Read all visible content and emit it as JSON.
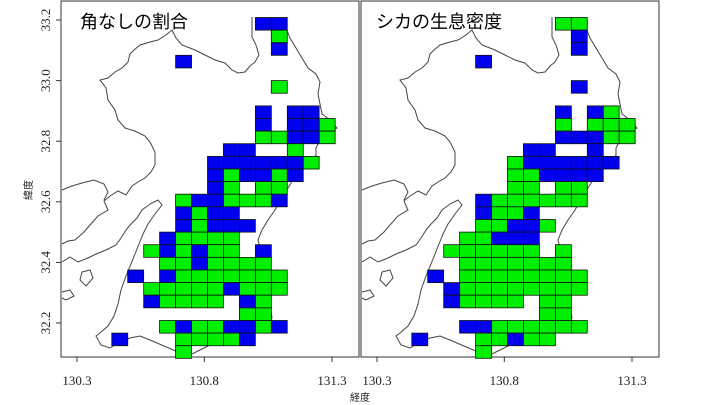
{
  "x_axis": {
    "label": "経度",
    "ticks": [
      "130.3",
      "130.8",
      "131.3"
    ]
  },
  "y_axis": {
    "label": "緯度",
    "ticks": [
      "32.2",
      "32.4",
      "32.6",
      "32.8",
      "33.0",
      "33.2"
    ]
  },
  "colors": {
    "blue": "#0000ee",
    "green": "#00ee00",
    "coast": "#444444"
  },
  "panels": [
    {
      "title": "角なしの割合",
      "rows": [
        {
          "lat": 33.1667,
          "blue": [
            131.0,
            131.0625
          ],
          "green": []
        },
        {
          "lat": 33.125,
          "blue": [],
          "green": [
            131.0625
          ]
        },
        {
          "lat": 33.0833,
          "blue": [
            131.0625
          ],
          "green": []
        },
        {
          "lat": 33.0417,
          "blue": [
            130.6875
          ],
          "green": []
        },
        {
          "lat": 32.9583,
          "blue": [],
          "green": [
            131.0625
          ]
        },
        {
          "lat": 32.875,
          "blue": [
            131.0,
            131.125,
            131.1875
          ],
          "green": []
        },
        {
          "lat": 32.8333,
          "blue": [
            131.0,
            131.125,
            131.1875
          ],
          "green": [
            131.25
          ]
        },
        {
          "lat": 32.7917,
          "blue": [
            131.125,
            131.1875
          ],
          "green": [
            131.0,
            131.0625,
            131.25
          ]
        },
        {
          "lat": 32.75,
          "blue": [
            130.875,
            130.9375
          ],
          "green": [
            131.125
          ]
        },
        {
          "lat": 32.7083,
          "blue": [
            130.8125,
            130.875,
            130.9375,
            131.0,
            131.0625,
            131.125
          ],
          "green": [
            131.1875
          ]
        },
        {
          "lat": 32.6667,
          "blue": [
            130.8125,
            130.9375,
            131.0,
            131.125
          ],
          "green": [
            130.875,
            131.0625
          ]
        },
        {
          "lat": 32.625,
          "blue": [
            130.8125
          ],
          "green": [
            130.875,
            131.0,
            131.0625
          ]
        },
        {
          "lat": 32.5833,
          "blue": [
            130.75,
            130.8125,
            131.0625
          ],
          "green": [
            130.6875,
            130.875,
            130.9375,
            131.0
          ]
        },
        {
          "lat": 32.5417,
          "blue": [
            130.6875,
            130.8125,
            130.875
          ],
          "green": [
            130.75
          ]
        },
        {
          "lat": 32.5,
          "blue": [
            130.6875,
            130.8125,
            130.875,
            130.9375
          ],
          "green": [
            130.75
          ]
        },
        {
          "lat": 32.4583,
          "blue": [
            130.625
          ],
          "green": [
            130.6875,
            130.75,
            130.8125,
            130.875
          ]
        },
        {
          "lat": 32.4167,
          "blue": [
            130.625,
            130.75,
            131.0
          ],
          "green": [
            130.5625,
            130.6875,
            130.8125,
            130.875
          ]
        },
        {
          "lat": 32.375,
          "blue": [
            130.75
          ],
          "green": [
            130.625,
            130.6875,
            130.8125,
            130.875,
            130.9375,
            131.0
          ]
        },
        {
          "lat": 32.3333,
          "blue": [
            130.5,
            130.625
          ],
          "green": [
            130.6875,
            130.75,
            130.8125,
            130.875,
            130.9375,
            131.0,
            131.0625
          ]
        },
        {
          "lat": 32.2917,
          "blue": [
            130.875
          ],
          "green": [
            130.5625,
            130.625,
            130.6875,
            130.75,
            130.8125,
            130.9375,
            131.0,
            131.0625
          ]
        },
        {
          "lat": 32.25,
          "blue": [
            130.5625,
            130.9375
          ],
          "green": [
            130.625,
            130.6875,
            130.75,
            130.8125,
            131.0
          ]
        },
        {
          "lat": 32.2083,
          "blue": [],
          "green": [
            130.9375,
            131.0
          ]
        },
        {
          "lat": 32.1667,
          "blue": [
            130.6875,
            130.875,
            130.9375,
            131.0625
          ],
          "green": [
            130.625,
            130.75,
            130.8125,
            131.0
          ]
        },
        {
          "lat": 32.125,
          "blue": [
            130.4375,
            130.9375
          ],
          "green": [
            130.6875,
            130.75,
            130.8125,
            130.875
          ]
        },
        {
          "lat": 32.0833,
          "blue": [],
          "green": [
            130.6875
          ]
        }
      ]
    },
    {
      "title": "シカの生息密度",
      "rows": [
        {
          "lat": 33.1667,
          "blue": [],
          "green": [
            131.0,
            131.0625
          ]
        },
        {
          "lat": 33.125,
          "blue": [
            131.0625
          ],
          "green": []
        },
        {
          "lat": 33.0833,
          "blue": [
            131.0625
          ],
          "green": []
        },
        {
          "lat": 33.0417,
          "blue": [
            130.6875
          ],
          "green": []
        },
        {
          "lat": 32.9583,
          "blue": [
            131.0625
          ],
          "green": []
        },
        {
          "lat": 32.875,
          "blue": [
            131.0,
            131.125
          ],
          "green": [
            131.1875
          ]
        },
        {
          "lat": 32.8333,
          "blue": [],
          "green": [
            131.0,
            131.125,
            131.1875,
            131.25
          ]
        },
        {
          "lat": 32.7917,
          "blue": [
            131.0,
            131.0625,
            131.125
          ],
          "green": [
            131.1875,
            131.25
          ]
        },
        {
          "lat": 32.75,
          "blue": [
            130.875,
            130.9375,
            131.125
          ],
          "green": []
        },
        {
          "lat": 32.7083,
          "blue": [
            130.875,
            130.9375,
            131.0,
            131.0625,
            131.125,
            131.1875
          ],
          "green": [
            130.8125
          ]
        },
        {
          "lat": 32.6667,
          "blue": [
            130.9375,
            131.0,
            131.0625,
            131.125
          ],
          "green": [
            130.8125,
            130.875
          ]
        },
        {
          "lat": 32.625,
          "blue": [],
          "green": [
            130.8125,
            130.875,
            131.0,
            131.0625
          ]
        },
        {
          "lat": 32.5833,
          "blue": [
            130.6875
          ],
          "green": [
            130.75,
            130.8125,
            130.875,
            130.9375,
            131.0,
            131.0625
          ]
        },
        {
          "lat": 32.5417,
          "blue": [
            130.6875,
            130.875
          ],
          "green": [
            130.75,
            130.8125
          ]
        },
        {
          "lat": 32.5,
          "blue": [
            130.8125,
            130.875
          ],
          "green": [
            130.6875,
            130.75,
            130.9375
          ]
        },
        {
          "lat": 32.4583,
          "blue": [
            130.75,
            130.8125,
            130.875
          ],
          "green": [
            130.625,
            130.6875
          ]
        },
        {
          "lat": 32.4167,
          "blue": [],
          "green": [
            130.5625,
            130.625,
            130.6875,
            130.75,
            130.8125,
            130.875,
            131.0
          ]
        },
        {
          "lat": 32.375,
          "blue": [],
          "green": [
            130.625,
            130.6875,
            130.75,
            130.8125,
            130.875,
            130.9375,
            131.0
          ]
        },
        {
          "lat": 32.3333,
          "blue": [
            130.5
          ],
          "green": [
            130.625,
            130.6875,
            130.75,
            130.8125,
            130.875,
            130.9375,
            131.0,
            131.0625
          ]
        },
        {
          "lat": 32.2917,
          "blue": [
            130.5625
          ],
          "green": [
            130.625,
            130.6875,
            130.75,
            130.8125,
            130.875,
            130.9375,
            131.0,
            131.0625
          ]
        },
        {
          "lat": 32.25,
          "blue": [
            130.5625
          ],
          "green": [
            130.625,
            130.6875,
            130.75,
            130.8125,
            130.9375,
            131.0
          ]
        },
        {
          "lat": 32.2083,
          "blue": [],
          "green": [
            130.9375,
            131.0
          ]
        },
        {
          "lat": 32.1667,
          "blue": [
            130.625,
            130.6875
          ],
          "green": [
            130.75,
            130.8125,
            130.875,
            130.9375,
            131.0,
            131.0625
          ]
        },
        {
          "lat": 32.125,
          "blue": [
            130.4375,
            130.8125
          ],
          "green": [
            130.6875,
            130.75,
            130.875,
            130.9375
          ]
        },
        {
          "lat": 32.0833,
          "blue": [],
          "green": [
            130.6875
          ]
        }
      ]
    }
  ]
}
